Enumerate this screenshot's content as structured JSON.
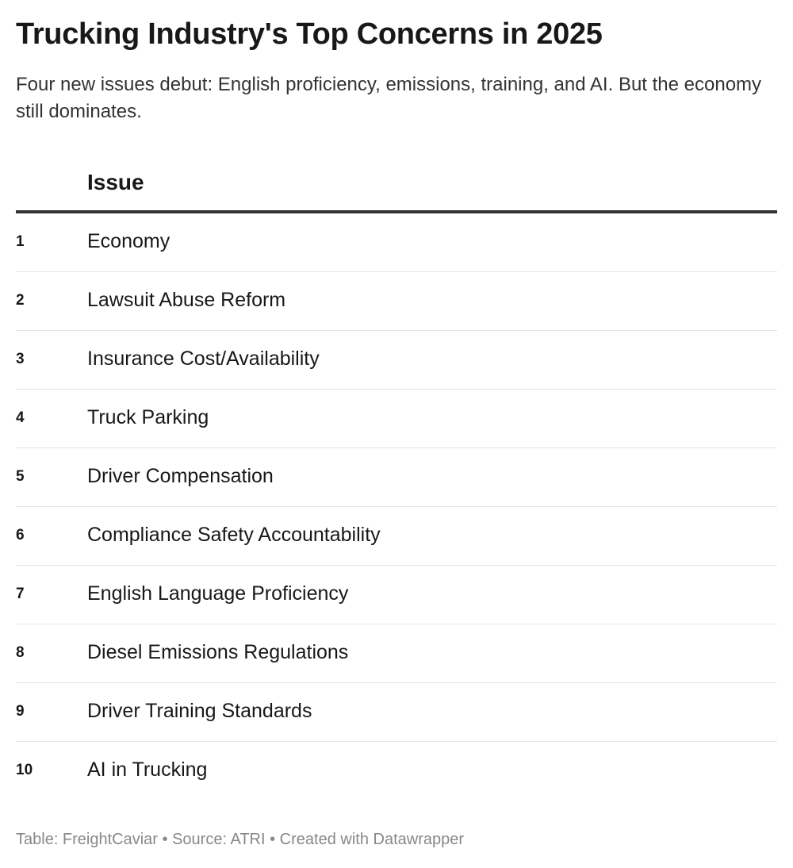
{
  "title": "Trucking Industry's Top Concerns in 2025",
  "subtitle": "Four new issues debut: English proficiency, emissions, training, and AI. But the economy still dominates.",
  "table": {
    "header": {
      "rank": "",
      "issue": "Issue"
    },
    "rows": [
      {
        "rank": "1",
        "issue": "Economy"
      },
      {
        "rank": "2",
        "issue": "Lawsuit Abuse Reform"
      },
      {
        "rank": "3",
        "issue": "Insurance Cost/Availability"
      },
      {
        "rank": "4",
        "issue": "Truck Parking"
      },
      {
        "rank": "5",
        "issue": "Driver Compensation"
      },
      {
        "rank": "6",
        "issue": "Compliance Safety Accountability"
      },
      {
        "rank": "7",
        "issue": "English Language Proficiency"
      },
      {
        "rank": "8",
        "issue": "Diesel Emissions Regulations"
      },
      {
        "rank": "9",
        "issue": "Driver Training Standards"
      },
      {
        "rank": "10",
        "issue": "AI in Trucking"
      }
    ]
  },
  "footer": {
    "table_credit": "Table: FreightCaviar",
    "source": "Source: ATRI",
    "created_with": "Created with Datawrapper",
    "separator": " • "
  }
}
